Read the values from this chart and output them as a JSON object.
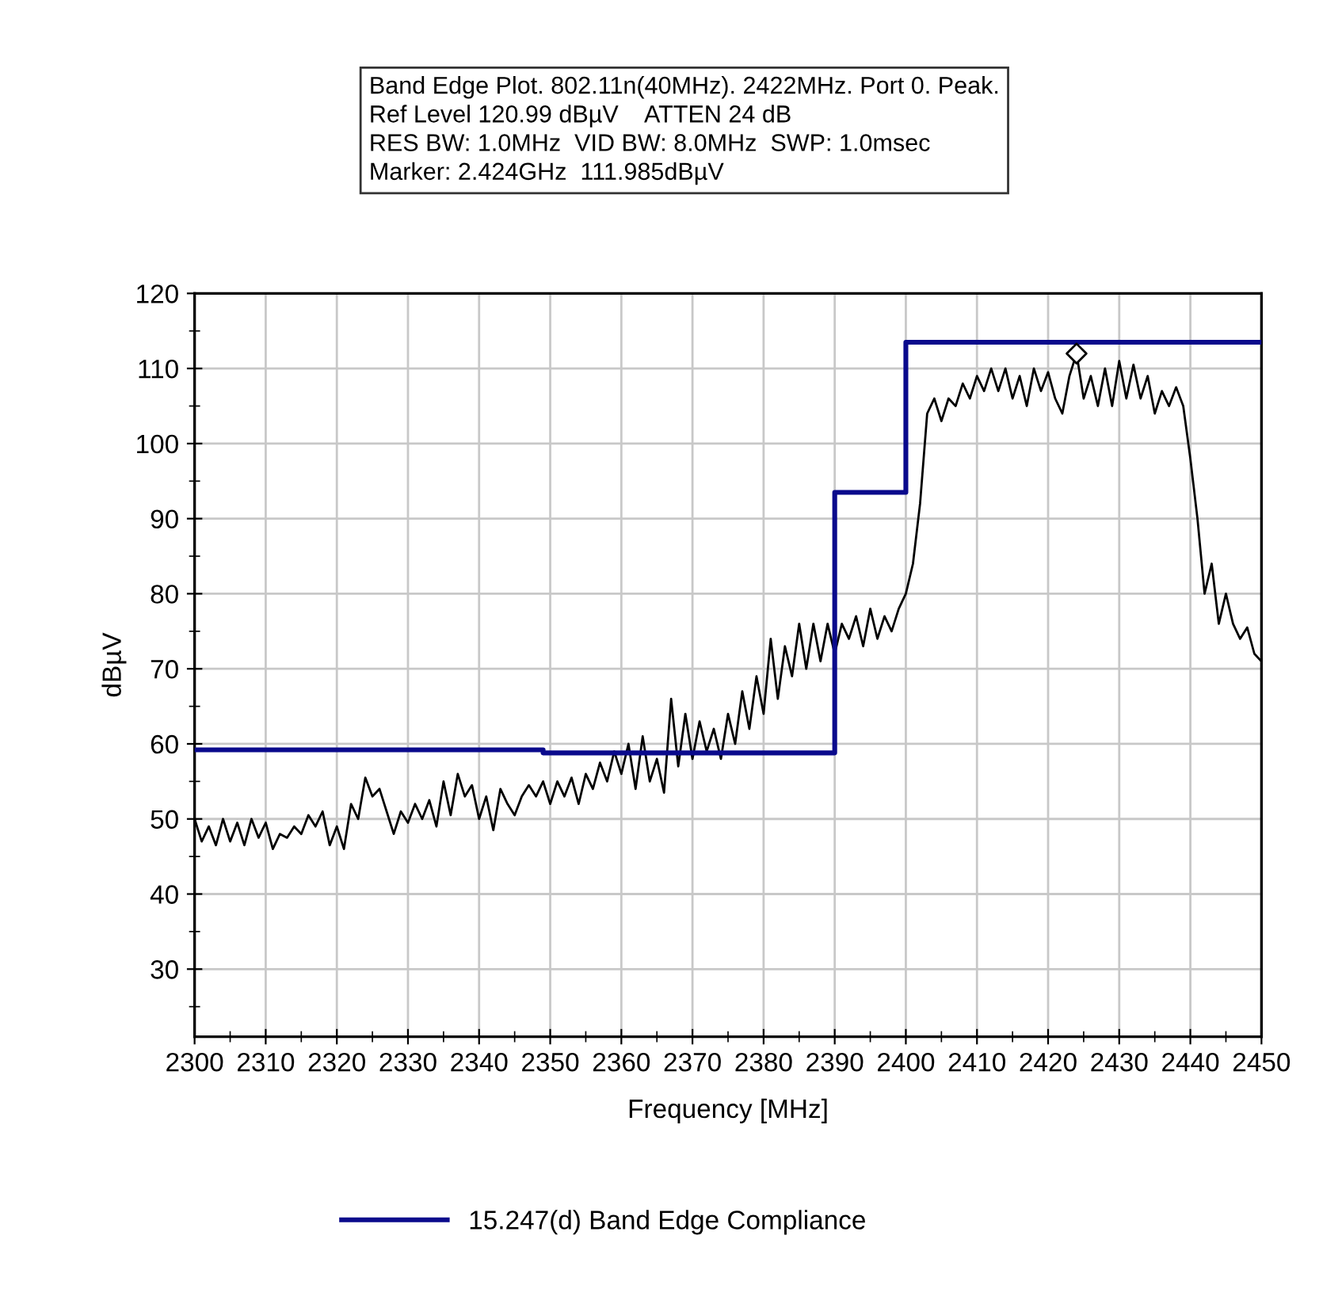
{
  "chart_data": {
    "type": "line",
    "title": "Band Edge Plot. 802.11n(40MHz). 2422MHz. Port 0. Peak.",
    "annotations": [
      "Ref Level 120.99 dBµV    ATTEN 24 dB",
      "RES BW: 1.0MHz  VID BW: 8.0MHz  SWP: 1.0msec",
      "Marker: 2.424GHz  111.985dBµV"
    ],
    "xlabel": "Frequency [MHz]",
    "ylabel": "dBµV",
    "xlim": [
      2300,
      2450
    ],
    "xticks": [
      2300,
      2310,
      2320,
      2330,
      2340,
      2350,
      2360,
      2370,
      2380,
      2390,
      2400,
      2410,
      2420,
      2430,
      2440,
      2450
    ],
    "ylim": [
      21,
      120
    ],
    "yticks": [
      30,
      40,
      50,
      60,
      70,
      80,
      90,
      100,
      110,
      120
    ],
    "grid": true,
    "legend": "bottom",
    "series": [
      {
        "color": "#000000",
        "x": [
          2300,
          2301,
          2302,
          2303,
          2304,
          2305,
          2306,
          2307,
          2308,
          2309,
          2310,
          2311,
          2312,
          2313,
          2314,
          2315,
          2316,
          2317,
          2318,
          2319,
          2320,
          2321,
          2322,
          2323,
          2324,
          2325,
          2326,
          2327,
          2328,
          2329,
          2330,
          2331,
          2332,
          2333,
          2334,
          2335,
          2336,
          2337,
          2338,
          2339,
          2340,
          2341,
          2342,
          2343,
          2344,
          2345,
          2346,
          2347,
          2348,
          2349,
          2350,
          2351,
          2352,
          2353,
          2354,
          2355,
          2356,
          2357,
          2358,
          2359,
          2360,
          2361,
          2362,
          2363,
          2364,
          2365,
          2366,
          2367,
          2368,
          2369,
          2370,
          2371,
          2372,
          2373,
          2374,
          2375,
          2376,
          2377,
          2378,
          2379,
          2380,
          2381,
          2382,
          2383,
          2384,
          2385,
          2386,
          2387,
          2388,
          2389,
          2390,
          2391,
          2392,
          2393,
          2394,
          2395,
          2396,
          2397,
          2398,
          2399,
          2400,
          2401,
          2402,
          2403,
          2404,
          2405,
          2406,
          2407,
          2408,
          2409,
          2410,
          2411,
          2412,
          2413,
          2414,
          2415,
          2416,
          2417,
          2418,
          2419,
          2420,
          2421,
          2422,
          2423,
          2424,
          2425,
          2426,
          2427,
          2428,
          2429,
          2430,
          2431,
          2432,
          2433,
          2434,
          2435,
          2436,
          2437,
          2438,
          2439,
          2440,
          2441,
          2442,
          2443,
          2444,
          2445,
          2446,
          2447,
          2448,
          2449,
          2450
        ],
        "values": [
          50,
          47,
          49,
          46.5,
          50,
          47,
          49.5,
          46.5,
          50,
          47.5,
          49.5,
          46,
          48,
          47.5,
          49,
          48,
          50.5,
          49,
          51,
          46.5,
          49,
          46,
          52,
          50,
          55.5,
          53,
          54,
          51,
          48,
          51,
          49.5,
          52,
          50,
          52.5,
          49,
          55,
          50.5,
          56,
          53,
          54.5,
          50,
          53,
          48.5,
          54,
          52,
          50.5,
          53,
          54.5,
          53,
          55,
          52,
          55,
          53,
          55.5,
          52,
          56,
          54,
          57.5,
          55,
          59,
          56,
          60,
          54,
          61,
          55,
          58,
          53.5,
          66,
          57,
          64,
          58,
          63,
          59,
          62,
          58,
          64,
          60,
          67,
          62,
          69,
          64,
          74,
          66,
          73,
          69,
          76,
          70,
          76,
          71,
          76,
          72,
          76,
          74,
          77,
          73,
          78,
          74,
          77,
          75,
          78,
          80,
          84,
          92,
          104,
          106,
          103,
          106,
          105,
          108,
          106,
          109,
          107,
          110,
          107,
          110,
          106,
          109,
          105,
          110,
          107,
          109.5,
          106,
          104,
          109,
          112,
          106,
          109,
          105,
          110,
          105,
          111,
          106,
          110.5,
          106,
          109,
          104,
          107,
          105,
          107.5,
          105,
          98,
          90,
          80,
          84,
          76,
          80,
          76,
          74,
          75.5,
          72,
          71
        ]
      },
      {
        "name": "15.247(d) Band Edge Compliance",
        "color": "#0a0a8c",
        "x": [
          2300,
          2349,
          2349,
          2390,
          2390,
          2400,
          2400,
          2450
        ],
        "values": [
          59.2,
          59.2,
          58.8,
          58.8,
          93.5,
          93.5,
          113.5,
          113.5
        ]
      },
      {
        "type": "scatter",
        "marker": "diamond",
        "color": "#000000",
        "x": [
          2424
        ],
        "values": [
          111.985
        ]
      }
    ]
  }
}
